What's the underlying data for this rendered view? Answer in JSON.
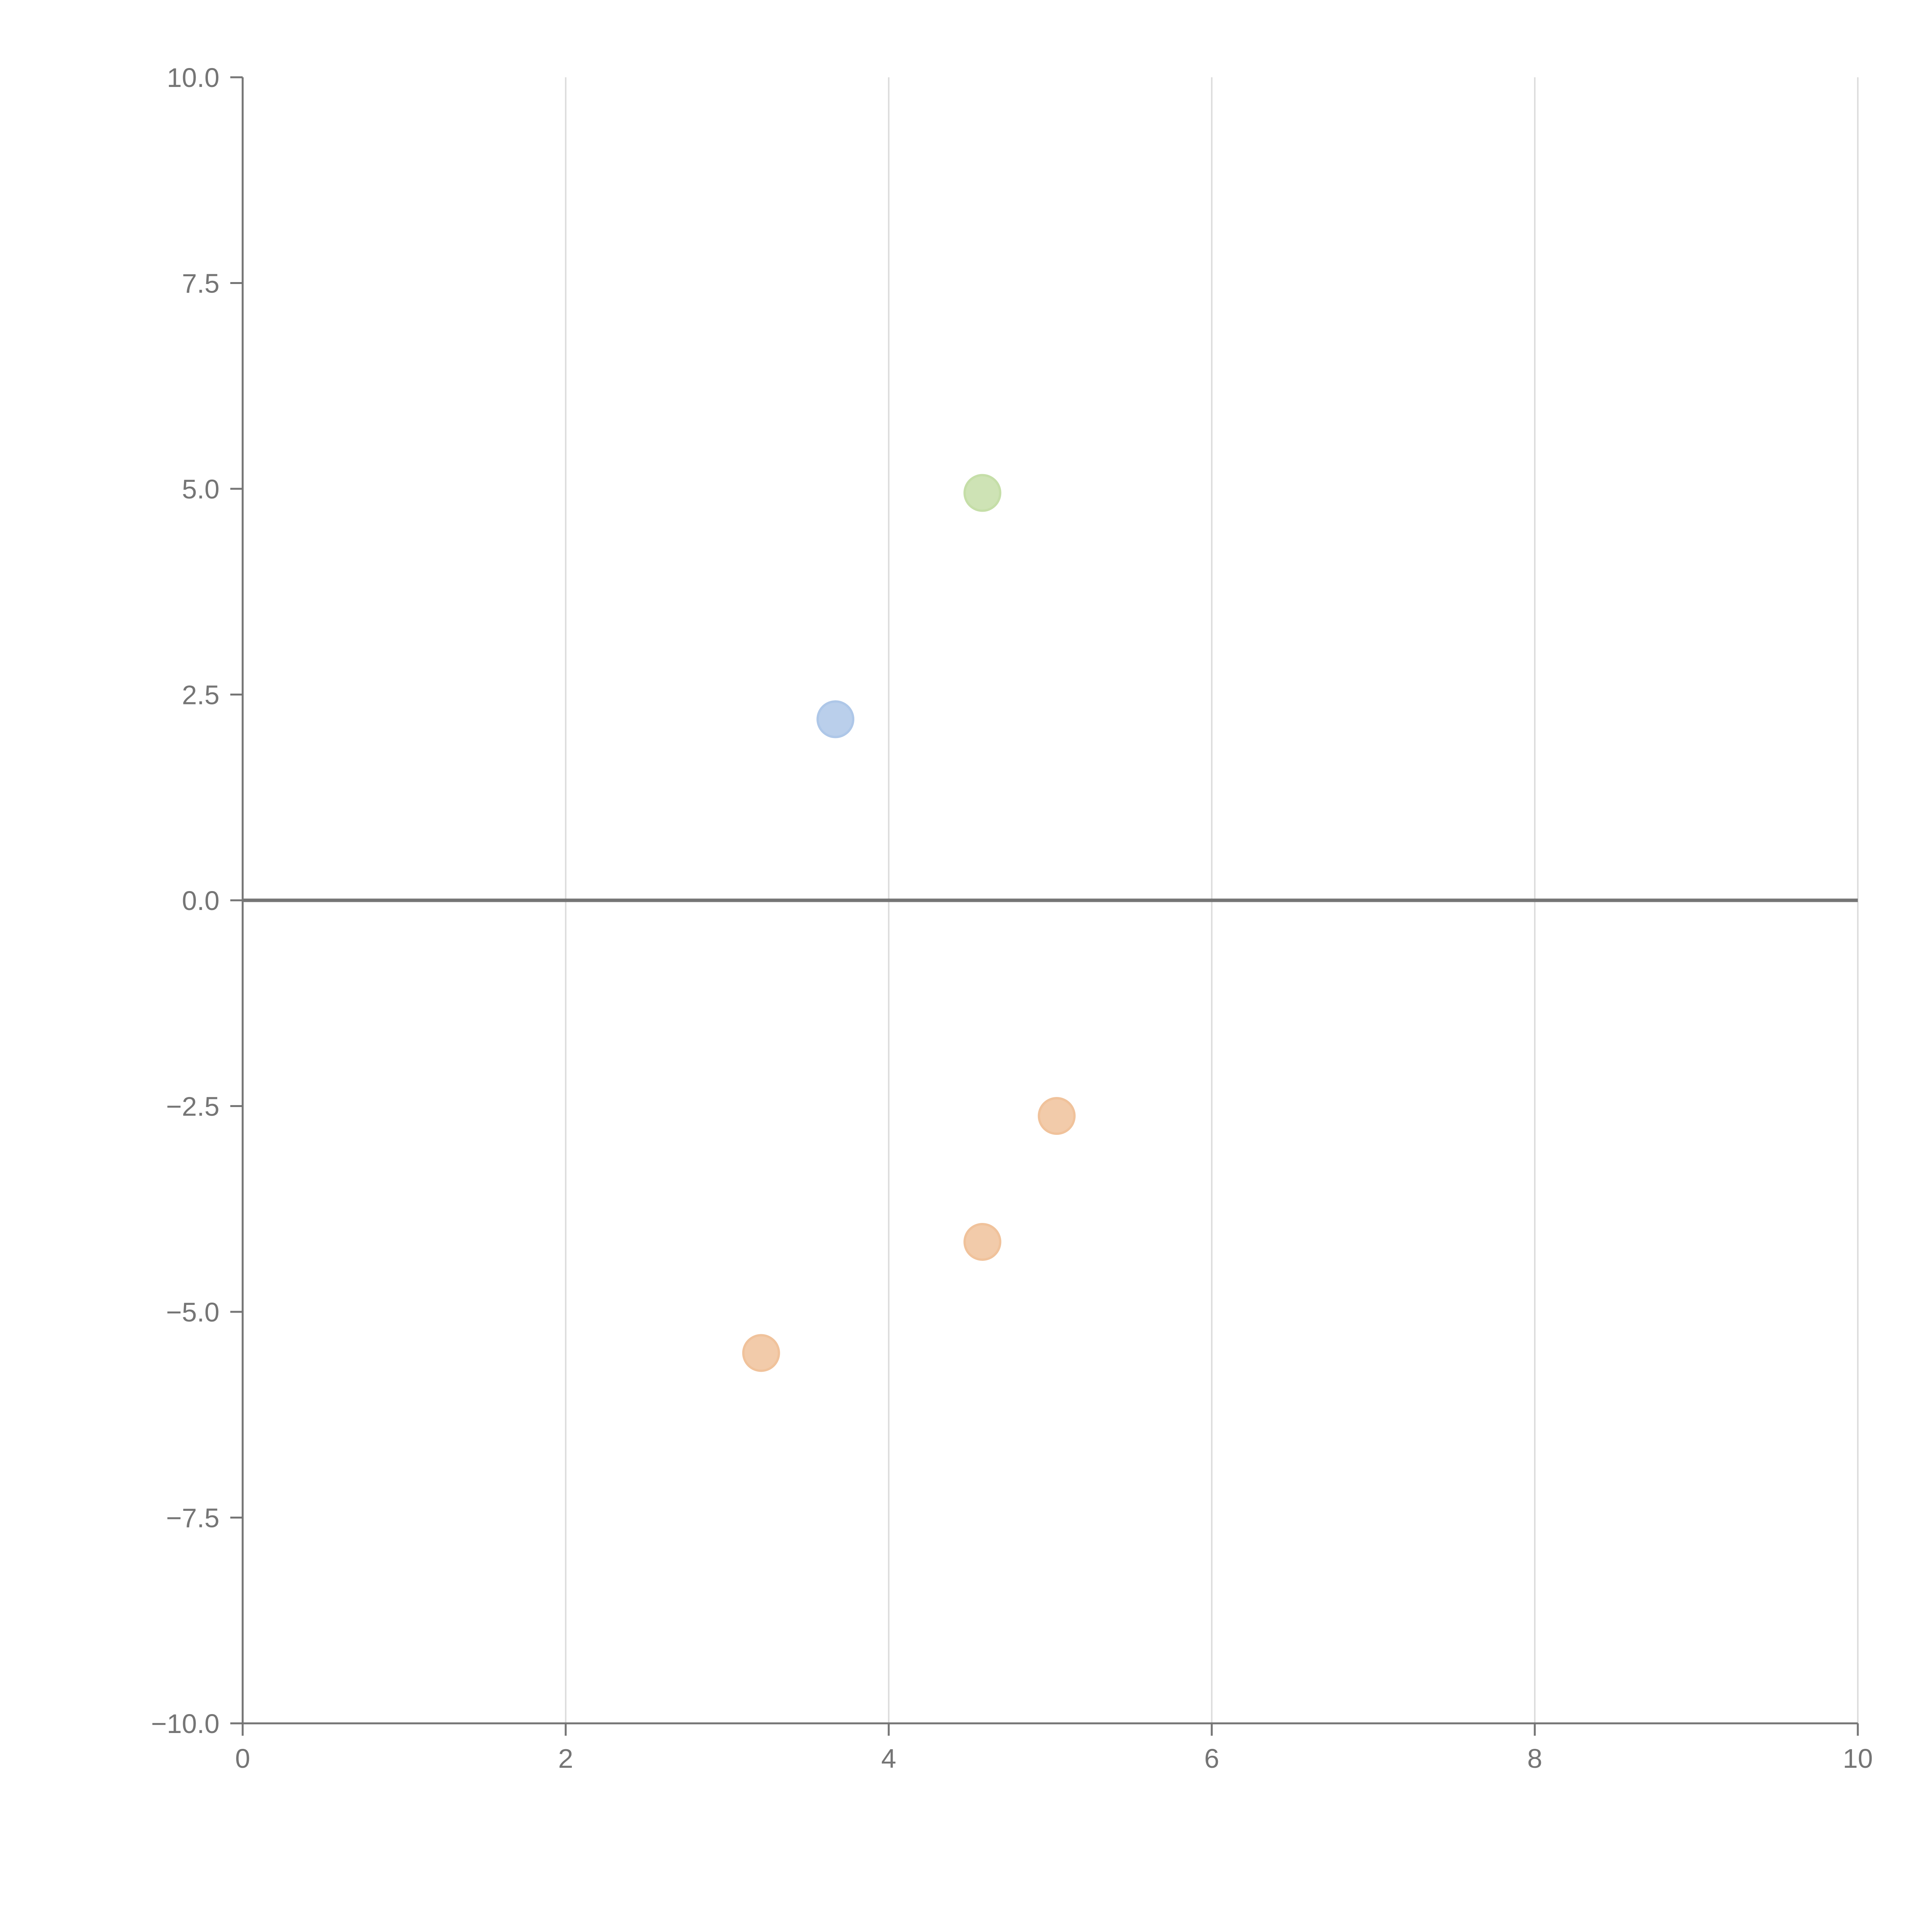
{
  "chart_data": {
    "type": "scatter",
    "title": "",
    "xlabel": "",
    "ylabel": "",
    "xlim": [
      0,
      10
    ],
    "ylim": [
      -10,
      10
    ],
    "x_ticks": [
      0,
      2,
      4,
      6,
      8,
      10
    ],
    "y_ticks": [
      -10,
      -7.5,
      -5,
      -2.5,
      0,
      2.5,
      5,
      7.5,
      10
    ],
    "x_tick_labels": [
      "0",
      "2",
      "4",
      "6",
      "8",
      "10"
    ],
    "y_tick_labels": [
      "−10.0",
      "−7.5",
      "−5.0",
      "−2.5",
      "0.0",
      "2.5",
      "5.0",
      "7.5",
      "10.0"
    ],
    "vertical_grid": true,
    "horizontal_grid": false,
    "reference_line_y": 0,
    "series": [
      {
        "color": "#aec7e8",
        "points": [
          {
            "x": 3.67,
            "y": 2.2
          }
        ]
      },
      {
        "color": "#c5dea8",
        "points": [
          {
            "x": 4.58,
            "y": 4.95
          }
        ]
      },
      {
        "color": "#f0c29b",
        "points": [
          {
            "x": 5.04,
            "y": -2.62
          },
          {
            "x": 4.58,
            "y": -4.15
          },
          {
            "x": 3.21,
            "y": -5.5
          }
        ]
      }
    ],
    "colors": {
      "axis": "#757575",
      "grid": "#dddddd",
      "zero_line": "#757575"
    }
  }
}
